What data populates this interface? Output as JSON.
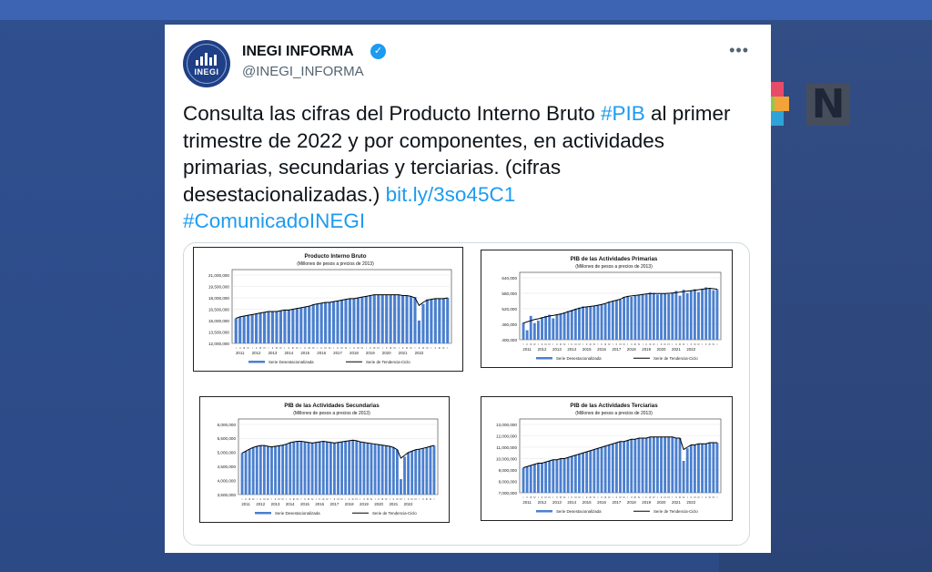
{
  "tweet": {
    "author_name": "INEGI INFORMA",
    "handle": "@INEGI_INFORMA",
    "avatar_text": "INEGI",
    "more_label": "•••",
    "text_1": "Consulta las cifras del Producto Interno Bruto ",
    "hashtag_pib": "#PIB",
    "text_2": " al primer trimestre de 2022 y por componentes, en actividades primarias, secundarias y terciarias. (cifras desestacionalizadas.) ",
    "link": "bit.ly/3so45C1",
    "hashtag_comunicado": "#ComunicadoINEGI"
  },
  "colors": {
    "bar": "#4a7fcf",
    "trend": "#000000",
    "link": "#1d9bf0"
  },
  "legend": {
    "bars": "Serie Desestacionalizada",
    "line": "Serie de Tendencia-Ciclo"
  },
  "chart_data": [
    {
      "type": "bar",
      "title": "Producto Interno Bruto",
      "subtitle": "(Millones de pesos a precios de 2013)",
      "ylim": [
        12000000,
        21000000
      ],
      "yticks": [
        "21,000,000",
        "19,500,000",
        "18,000,000",
        "16,500,000",
        "15,000,000",
        "13,500,000",
        "12,000,000"
      ],
      "years": [
        "2011",
        "2012",
        "2013",
        "2014",
        "2015",
        "2016",
        "2017",
        "2018",
        "2019",
        "2020",
        "2021",
        "2022"
      ],
      "series": [
        {
          "name": "Serie Desestacionalizada",
          "values": [
            15.3,
            15.5,
            15.6,
            15.7,
            15.8,
            15.9,
            16.0,
            16.1,
            16.2,
            16.2,
            16.2,
            16.3,
            16.4,
            16.4,
            16.5,
            16.6,
            16.7,
            16.8,
            16.9,
            17.1,
            17.2,
            17.3,
            17.4,
            17.4,
            17.5,
            17.6,
            17.7,
            17.8,
            17.9,
            17.9,
            18.0,
            18.1,
            18.2,
            18.3,
            18.4,
            18.4,
            18.4,
            18.4,
            18.4,
            18.4,
            18.4,
            18.3,
            18.3,
            18.2,
            18.1,
            15.0,
            17.2,
            17.8,
            17.8,
            17.9,
            17.9,
            17.9,
            18.0
          ]
        },
        {
          "name": "Serie de Tendencia-Ciclo",
          "values": [
            15.3,
            15.5,
            15.6,
            15.7,
            15.8,
            15.9,
            16.0,
            16.1,
            16.2,
            16.2,
            16.2,
            16.3,
            16.4,
            16.4,
            16.5,
            16.6,
            16.7,
            16.8,
            16.9,
            17.1,
            17.2,
            17.3,
            17.4,
            17.4,
            17.5,
            17.6,
            17.7,
            17.8,
            17.9,
            17.9,
            18.0,
            18.1,
            18.2,
            18.3,
            18.4,
            18.4,
            18.4,
            18.4,
            18.4,
            18.4,
            18.4,
            18.3,
            18.3,
            18.2,
            18.0,
            17.0,
            17.4,
            17.7,
            17.8,
            17.9,
            17.9,
            17.9,
            18.0
          ]
        }
      ],
      "value_scale": 1000000
    },
    {
      "type": "bar",
      "title": "PIB de las Actividades Primarias",
      "subtitle": "(Millones de pesos a precios de 2013)",
      "ylim": [
        400000,
        660000
      ],
      "yticks": [
        "640,000",
        "580,000",
        "520,000",
        "460,000",
        "400,000"
      ],
      "years": [
        "2011",
        "2012",
        "2013",
        "2014",
        "2015",
        "2016",
        "2017",
        "2018",
        "2019",
        "2020",
        "2021",
        "2022"
      ],
      "series": [
        {
          "name": "Serie Desestacionalizada",
          "values": [
            472,
            440,
            500,
            470,
            480,
            495,
            500,
            505,
            490,
            505,
            510,
            515,
            520,
            525,
            530,
            535,
            540,
            538,
            540,
            542,
            545,
            548,
            550,
            560,
            562,
            565,
            568,
            580,
            582,
            580,
            584,
            588,
            592,
            590,
            598,
            596,
            590,
            592,
            595,
            592,
            598,
            605,
            585,
            610,
            595,
            606,
            612,
            600,
            612,
            620,
            616,
            608,
            612
          ]
        },
        {
          "name": "Serie de Tendencia-Ciclo",
          "values": [
            470,
            475,
            480,
            485,
            488,
            492,
            496,
            500,
            502,
            505,
            508,
            512,
            518,
            522,
            528,
            532,
            536,
            538,
            540,
            542,
            545,
            548,
            552,
            558,
            562,
            566,
            570,
            578,
            582,
            584,
            586,
            588,
            590,
            592,
            594,
            594,
            594,
            594,
            594,
            595,
            596,
            598,
            600,
            602,
            604,
            606,
            608,
            610,
            612,
            614,
            616,
            614,
            612
          ]
        }
      ],
      "value_scale": 1000
    },
    {
      "type": "bar",
      "title": "PIB de las Actividades Secundarias",
      "subtitle": "(Millones de pesos a precios de 2013)",
      "ylim": [
        3500000,
        6000000
      ],
      "yticks": [
        "6,000,000",
        "5,500,000",
        "5,000,000",
        "4,500,000",
        "4,000,000",
        "3,500,000"
      ],
      "years": [
        "2011",
        "2012",
        "2013",
        "2014",
        "2015",
        "2016",
        "2017",
        "2018",
        "2019",
        "2020",
        "2021",
        "2022"
      ],
      "series": [
        {
          "name": "Serie Desestacionalizada",
          "values": [
            4.98,
            5.05,
            5.12,
            5.18,
            5.22,
            5.25,
            5.25,
            5.22,
            5.2,
            5.22,
            5.24,
            5.26,
            5.3,
            5.35,
            5.38,
            5.4,
            5.4,
            5.38,
            5.36,
            5.34,
            5.36,
            5.38,
            5.4,
            5.38,
            5.36,
            5.34,
            5.36,
            5.38,
            5.4,
            5.42,
            5.44,
            5.42,
            5.38,
            5.36,
            5.34,
            5.32,
            5.3,
            5.28,
            5.26,
            5.24,
            5.22,
            5.18,
            5.1,
            4.05,
            4.85,
            5.0,
            5.05,
            5.1,
            5.12,
            5.15,
            5.18,
            5.22,
            5.25
          ]
        },
        {
          "name": "Serie de Tendencia-Ciclo",
          "values": [
            4.98,
            5.05,
            5.12,
            5.18,
            5.22,
            5.25,
            5.25,
            5.22,
            5.2,
            5.22,
            5.24,
            5.26,
            5.3,
            5.35,
            5.38,
            5.4,
            5.4,
            5.38,
            5.36,
            5.34,
            5.36,
            5.38,
            5.4,
            5.38,
            5.36,
            5.34,
            5.36,
            5.38,
            5.4,
            5.42,
            5.44,
            5.42,
            5.38,
            5.36,
            5.34,
            5.32,
            5.3,
            5.28,
            5.26,
            5.24,
            5.22,
            5.18,
            5.1,
            4.8,
            4.9,
            5.0,
            5.05,
            5.1,
            5.12,
            5.15,
            5.18,
            5.22,
            5.25
          ]
        }
      ],
      "value_scale": 1000000
    },
    {
      "type": "bar",
      "title": "PIB de las Actividades Terciarias",
      "subtitle": "(Millones de pesos a precios de 2013)",
      "ylim": [
        7000000,
        13000000
      ],
      "yticks": [
        "13,000,000",
        "12,000,000",
        "11,000,000",
        "10,000,000",
        "9,000,000",
        "8,000,000",
        "7,000,000"
      ],
      "years": [
        "2011",
        "2012",
        "2013",
        "2014",
        "2015",
        "2016",
        "2017",
        "2018",
        "2019",
        "2020",
        "2021",
        "2022"
      ],
      "series": [
        {
          "name": "Serie Desestacionalizada",
          "values": [
            9.2,
            9.3,
            9.4,
            9.5,
            9.6,
            9.6,
            9.7,
            9.8,
            9.9,
            9.9,
            10.0,
            10.0,
            10.1,
            10.2,
            10.3,
            10.4,
            10.5,
            10.6,
            10.7,
            10.8,
            10.9,
            11.0,
            11.1,
            11.2,
            11.3,
            11.4,
            11.5,
            11.5,
            11.6,
            11.7,
            11.7,
            11.8,
            11.8,
            11.8,
            11.9,
            11.9,
            11.9,
            11.9,
            11.9,
            11.9,
            11.9,
            11.8,
            11.8,
            9.8,
            10.9,
            11.2,
            11.2,
            11.3,
            11.3,
            11.3,
            11.4,
            11.4,
            11.4
          ]
        },
        {
          "name": "Serie de Tendencia-Ciclo",
          "values": [
            9.2,
            9.3,
            9.4,
            9.5,
            9.6,
            9.6,
            9.7,
            9.8,
            9.9,
            9.9,
            10.0,
            10.0,
            10.1,
            10.2,
            10.3,
            10.4,
            10.5,
            10.6,
            10.7,
            10.8,
            10.9,
            11.0,
            11.1,
            11.2,
            11.3,
            11.4,
            11.5,
            11.5,
            11.6,
            11.7,
            11.7,
            11.8,
            11.8,
            11.8,
            11.9,
            11.9,
            11.9,
            11.9,
            11.9,
            11.9,
            11.9,
            11.8,
            11.8,
            10.8,
            11.0,
            11.2,
            11.2,
            11.3,
            11.3,
            11.3,
            11.4,
            11.4,
            11.4
          ]
        }
      ],
      "value_scale": 1000000
    }
  ]
}
